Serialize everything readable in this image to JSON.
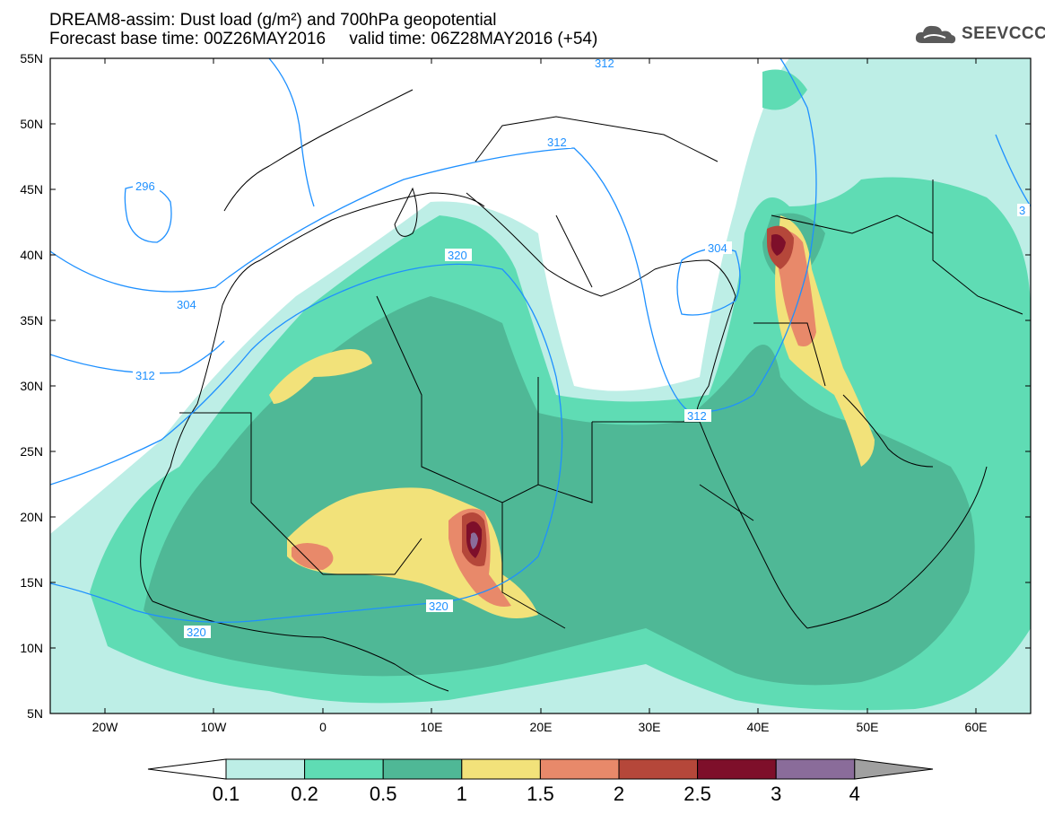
{
  "title": {
    "line1": "DREAM8-assim: Dust load (g/m²) and 700hPa geopotential",
    "line2": "Forecast base time: 00Z26MAY2016     valid time: 06Z28MAY2016 (+54)"
  },
  "logo": {
    "text": "SEEVCCC",
    "icon": "cloud-icon"
  },
  "axes": {
    "lat_labels": [
      "55N",
      "50N",
      "45N",
      "40N",
      "35N",
      "30N",
      "25N",
      "20N",
      "15N",
      "10N",
      "5N"
    ],
    "lon_labels": [
      "20W",
      "10W",
      "0",
      "10E",
      "20E",
      "30E",
      "40E",
      "50E",
      "60E"
    ],
    "lat_range": [
      5,
      55
    ],
    "lon_range": [
      -25,
      65
    ]
  },
  "legend": {
    "labels": [
      "0.1",
      "0.2",
      "0.5",
      "1",
      "1.5",
      "2",
      "2.5",
      "3",
      "4"
    ],
    "colors": [
      "#bdeee6",
      "#5fdcb4",
      "#4fb896",
      "#f2e27a",
      "#e8896a",
      "#b5473a",
      "#7e0f2a",
      "#8a6c9a"
    ],
    "below_color": "#ffffff",
    "above_color": "#a0a0a0"
  },
  "contour_labels": [
    "312",
    "312",
    "296",
    "304",
    "320",
    "304",
    "312",
    "320",
    "320",
    "312",
    "3"
  ],
  "colors": {
    "contour": "#1e90ff",
    "border": "#000000"
  }
}
